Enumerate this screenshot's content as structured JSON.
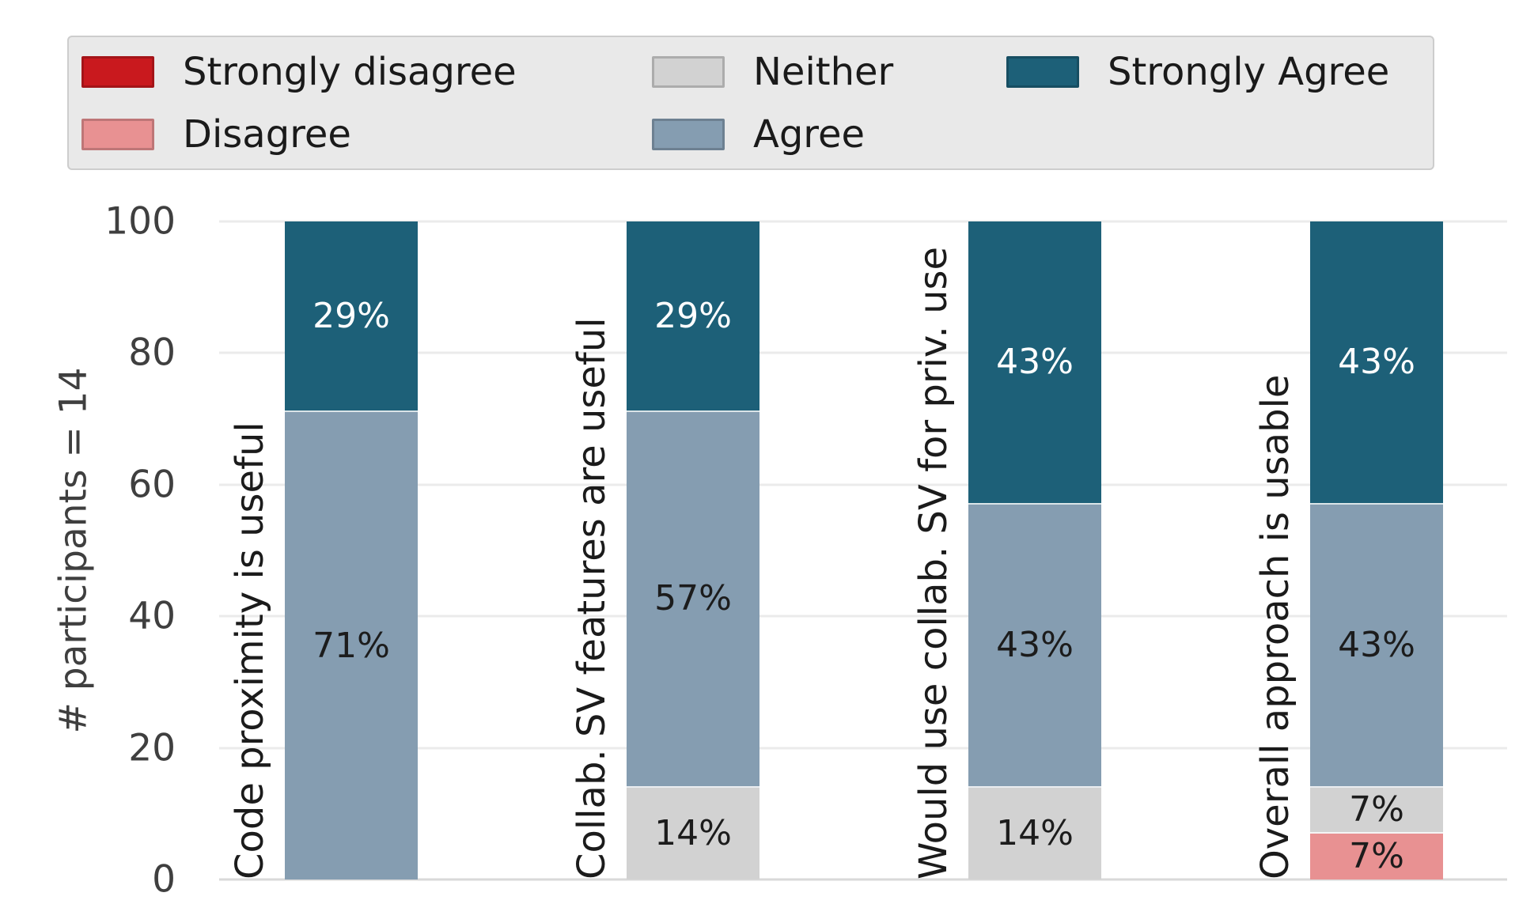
{
  "chart_data": {
    "type": "bar",
    "stacked": true,
    "orientation": "vertical",
    "title": "",
    "xlabel": "",
    "ylabel": "# participants = 14",
    "ylim": [
      0,
      100
    ],
    "yticks": [
      0,
      20,
      40,
      60,
      80,
      100
    ],
    "grid": true,
    "legend_position": "top",
    "value_suffix": "%",
    "categories": [
      "Code proximity is useful",
      "Collab. SV features are useful",
      "Would use collab. SV for priv. use",
      "Overall approach is usable"
    ],
    "series": [
      {
        "name": "Strongly disagree",
        "color": "#c9191e",
        "label_color": "#ffffff",
        "values": [
          0,
          0,
          0,
          0
        ]
      },
      {
        "name": "Disagree",
        "color": "#e89192",
        "label_color": "#1c1c1c",
        "values": [
          0,
          0,
          0,
          7
        ]
      },
      {
        "name": "Neither",
        "color": "#d2d2d2",
        "label_color": "#1c1c1c",
        "values": [
          0,
          14,
          14,
          7
        ]
      },
      {
        "name": "Agree",
        "color": "#859db1",
        "label_color": "#1c1c1c",
        "values": [
          71,
          57,
          43,
          43
        ]
      },
      {
        "name": "Strongly Agree",
        "color": "#1d6078",
        "label_color": "#ffffff",
        "values": [
          29,
          29,
          43,
          43
        ]
      }
    ]
  },
  "legend": {
    "items": [
      "Strongly disagree",
      "Disagree",
      "Neither",
      "Agree",
      "Strongly Agree"
    ]
  },
  "colors": {
    "background": "#ffffff",
    "legend_bg": "#e9e9e9",
    "legend_border": "#cdcdcd",
    "grid": "#ebebeb",
    "baseline": "#d9d9d9",
    "tick_text": "#3f3f3f",
    "category_text": "#1b1b1b"
  }
}
